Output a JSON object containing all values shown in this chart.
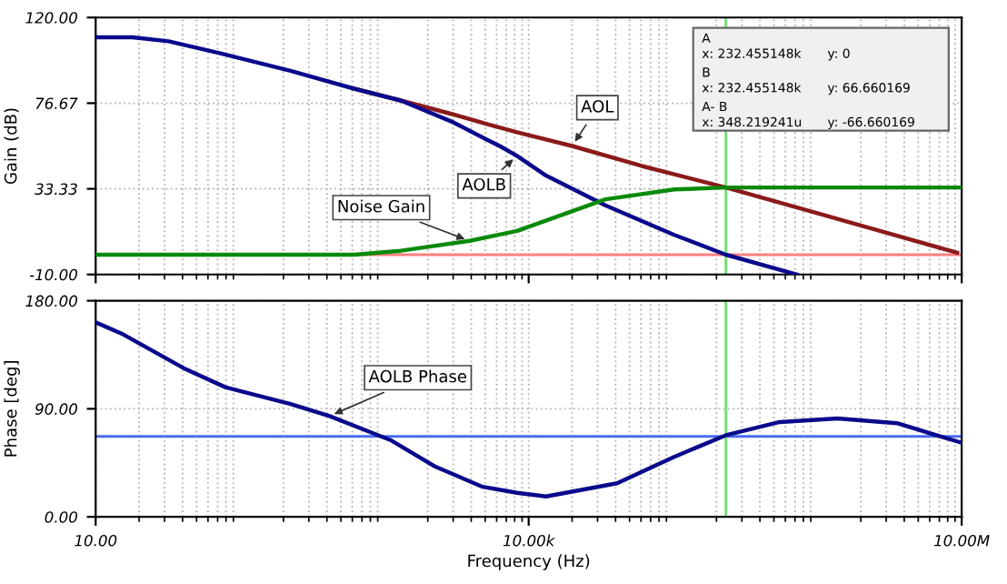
{
  "chart_data": [
    {
      "type": "line",
      "ylabel": "Gain (dB)",
      "log": "x",
      "grid": true,
      "legend": false,
      "tick_labels": "y",
      "xlim": [
        10,
        10000000
      ],
      "xticks": [
        {
          "value": 10,
          "label": null
        },
        {
          "value": 10000,
          "label": null
        },
        {
          "value": 10000000,
          "label": null
        }
      ],
      "ylim": [
        -10,
        120
      ],
      "yticks": [
        {
          "value": -10,
          "label": "-10.00"
        },
        {
          "value": 33.33,
          "label": "33.33"
        },
        {
          "value": 76.67,
          "label": "76.67"
        },
        {
          "value": 120,
          "label": "120.00"
        }
      ],
      "series": [
        {
          "name": "AOL",
          "color": "#8b1a1a",
          "x": [
            617,
            1300,
            3000,
            5200,
            8300,
            20000,
            60000,
            232455,
            1000000,
            9300000
          ],
          "values": [
            84,
            78,
            71,
            66,
            62,
            55,
            45,
            34,
            21,
            1
          ]
        },
        {
          "name": "AOLB",
          "color": "#0a0a8c",
          "x": [
            10,
            18,
            32,
            72,
            224,
            617,
            1300,
            3000,
            5200,
            6300,
            8300,
            13200,
            34000,
            102000,
            232455,
            720000
          ],
          "values": [
            110,
            110,
            108,
            102,
            93,
            84,
            78,
            67,
            58,
            55,
            50,
            40,
            25,
            10,
            0,
            -10
          ]
        },
        {
          "name": "Noise Gain",
          "color": "#0a8a0a",
          "x": [
            10,
            617,
            1300,
            3900,
            8300,
            34000,
            102000,
            232455,
            9800000
          ],
          "values": [
            0,
            0,
            2,
            7,
            12,
            28,
            33,
            34,
            34
          ]
        }
      ],
      "ref_lines": [
        {
          "axis": "y",
          "value": 0,
          "color": "#ff8080"
        },
        {
          "axis": "x",
          "value": 232455,
          "color": "#70e070"
        }
      ],
      "annotations": [
        "A",
        "x: 232.455148k",
        "y: 0",
        "B",
        "x: 232.455148k",
        "y: 66.660169",
        "A- B",
        "x: 348.219241u",
        "y: -66.660169"
      ]
    },
    {
      "type": "line",
      "xlabel": "Frequency (Hz)",
      "ylabel": "Phase [deg]",
      "log": "x",
      "grid": true,
      "legend": false,
      "xlim": [
        10,
        10000000
      ],
      "xticks": [
        {
          "value": 10,
          "label": "10.00"
        },
        {
          "value": 10000,
          "label": "10.00k"
        },
        {
          "value": 10000000,
          "label": "10.00M"
        }
      ],
      "ylim": [
        0,
        180
      ],
      "yticks": [
        {
          "value": 0,
          "label": "0.00"
        },
        {
          "value": 90,
          "label": "90.00"
        },
        {
          "value": 180,
          "label": "180.00"
        }
      ],
      "series": [
        {
          "name": "AOLB Phase",
          "color": "#0a0a8c",
          "x": [
            10,
            15.5,
            42,
            79,
            224,
            417,
            646,
            1100,
            2240,
            4800,
            8300,
            13200,
            41000,
            102000,
            232455,
            550000,
            1380000,
            3550000,
            9800000
          ],
          "values": [
            162,
            152,
            123,
            108,
            94,
            84,
            75,
            64,
            42,
            25,
            20,
            17,
            28,
            50,
            68,
            79,
            82,
            78,
            62
          ]
        }
      ],
      "ref_lines": [
        {
          "axis": "y",
          "value": 67,
          "color": "#4a6cf0"
        },
        {
          "axis": "x",
          "value": 232455,
          "color": "#70e070"
        }
      ]
    }
  ]
}
